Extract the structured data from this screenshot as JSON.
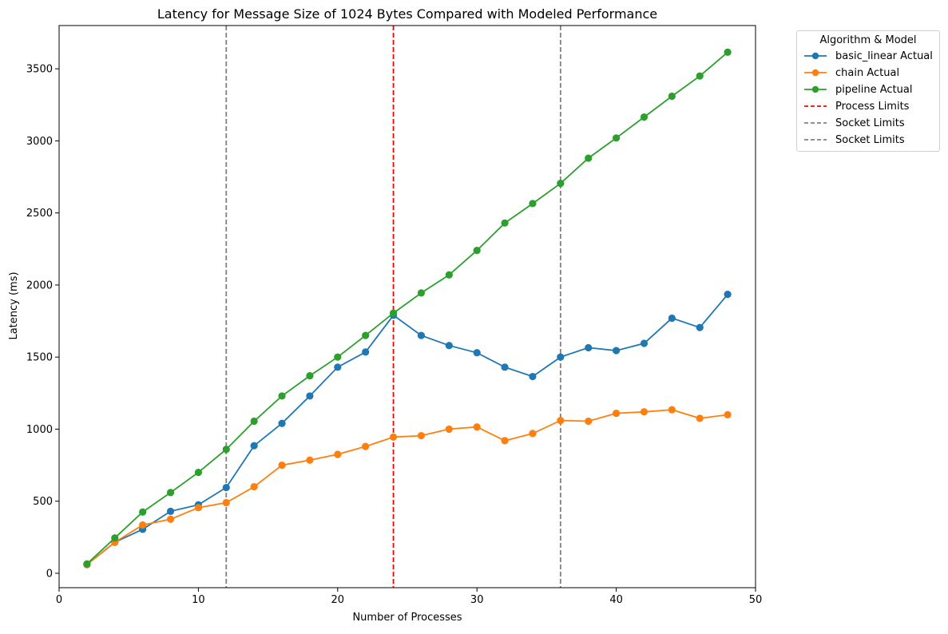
{
  "chart_data": {
    "type": "line",
    "title": "Latency for Message Size of 1024 Bytes Compared with Modeled Performance",
    "xlabel": "Number of Processes",
    "ylabel": "Latency (ms)",
    "xlim": [
      0,
      50
    ],
    "ylim": [
      -100,
      3800
    ],
    "xticks": [
      0,
      10,
      20,
      30,
      40,
      50
    ],
    "yticks": [
      0,
      500,
      1000,
      1500,
      2000,
      2500,
      3000,
      3500
    ],
    "grid": false,
    "legend": {
      "title": "Algorithm & Model",
      "placement": "outside-top-right",
      "entries": [
        {
          "label": "basic_linear Actual",
          "color": "#1f77b4",
          "style": "line-marker"
        },
        {
          "label": "chain Actual",
          "color": "#ff7f0e",
          "style": "line-marker"
        },
        {
          "label": "pipeline Actual",
          "color": "#2ca02c",
          "style": "line-marker"
        },
        {
          "label": "Process Limits",
          "color": "#ff0000",
          "style": "dashed"
        },
        {
          "label": "Socket Limits",
          "color": "#808080",
          "style": "dashed"
        },
        {
          "label": "Socket Limits",
          "color": "#808080",
          "style": "dashed"
        }
      ]
    },
    "x": [
      2,
      4,
      6,
      8,
      10,
      12,
      14,
      16,
      18,
      20,
      22,
      24,
      26,
      28,
      30,
      32,
      34,
      36,
      38,
      40,
      42,
      44,
      46,
      48
    ],
    "series": [
      {
        "name": "basic_linear Actual",
        "color": "#1f77b4",
        "values": [
          60,
          215,
          305,
          430,
          475,
          595,
          885,
          1040,
          1230,
          1430,
          1535,
          1790,
          1650,
          1580,
          1530,
          1430,
          1365,
          1500,
          1565,
          1545,
          1595,
          1770,
          1705,
          1935
        ]
      },
      {
        "name": "chain Actual",
        "color": "#ff7f0e",
        "values": [
          60,
          215,
          335,
          375,
          455,
          490,
          600,
          750,
          785,
          825,
          880,
          945,
          955,
          1000,
          1015,
          920,
          970,
          1060,
          1055,
          1110,
          1120,
          1135,
          1075,
          1100
        ]
      },
      {
        "name": "pipeline Actual",
        "color": "#2ca02c",
        "values": [
          65,
          245,
          425,
          560,
          700,
          860,
          1055,
          1230,
          1370,
          1500,
          1650,
          1805,
          1945,
          2070,
          2240,
          2430,
          2565,
          2705,
          2880,
          3020,
          3165,
          3310,
          3450,
          3615
        ]
      }
    ],
    "vlines": [
      {
        "x": 24,
        "color": "#ff0000",
        "label": "Process Limits"
      },
      {
        "x": 12,
        "color": "#808080",
        "label": "Socket Limits"
      },
      {
        "x": 36,
        "color": "#808080",
        "label": "Socket Limits"
      }
    ]
  }
}
